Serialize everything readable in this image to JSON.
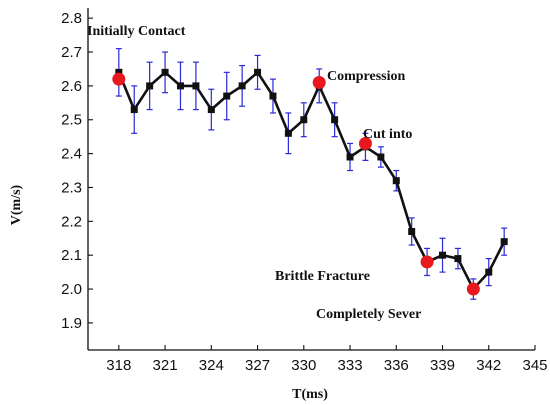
{
  "chart_data": {
    "type": "line",
    "title": "",
    "xlabel": "T(ms)",
    "ylabel": "V(m/s)",
    "xlim": [
      316,
      345
    ],
    "ylim": [
      1.82,
      2.83
    ],
    "xticks": [
      318,
      321,
      324,
      327,
      330,
      333,
      336,
      339,
      342,
      345
    ],
    "yticks": [
      1.9,
      2.0,
      2.1,
      2.2,
      2.3,
      2.4,
      2.5,
      2.6,
      2.7,
      2.8
    ],
    "ytick_labels": [
      "1.9",
      "2.0",
      "2.1",
      "2.2",
      "2.3",
      "2.4",
      "2.5",
      "2.6",
      "2.7",
      "2.8"
    ],
    "grid": false,
    "series": [
      {
        "x": [
          318,
          319,
          320,
          321,
          322,
          323,
          324,
          325,
          326,
          327,
          328,
          329,
          330,
          331,
          332,
          333,
          334,
          335,
          336,
          337,
          338,
          339,
          340,
          341,
          342,
          343
        ],
        "y": [
          2.64,
          2.53,
          2.6,
          2.64,
          2.6,
          2.6,
          2.53,
          2.57,
          2.6,
          2.64,
          2.57,
          2.46,
          2.5,
          2.6,
          2.5,
          2.39,
          2.42,
          2.39,
          2.32,
          2.17,
          2.08,
          2.1,
          2.09,
          2.0,
          2.05,
          2.14
        ],
        "error": [
          0.07,
          0.07,
          0.07,
          0.06,
          0.07,
          0.07,
          0.06,
          0.07,
          0.06,
          0.05,
          0.05,
          0.06,
          0.05,
          0.05,
          0.05,
          0.04,
          0.04,
          0.03,
          0.03,
          0.04,
          0.04,
          0.05,
          0.03,
          0.03,
          0.04,
          0.04
        ],
        "line_color": "#111111",
        "error_color": "#2a2ad6"
      }
    ],
    "highlights": [
      {
        "x": 318,
        "y": 2.62,
        "label": "Initially Contact"
      },
      {
        "x": 331,
        "y": 2.61,
        "label": "Compression"
      },
      {
        "x": 334,
        "y": 2.43,
        "label": "Cut into"
      },
      {
        "x": 338,
        "y": 2.08,
        "label": "Brittle Fracture"
      },
      {
        "x": 341,
        "y": 2.0,
        "label": "Completely Sever"
      }
    ],
    "highlight_color": "#e8181e"
  }
}
